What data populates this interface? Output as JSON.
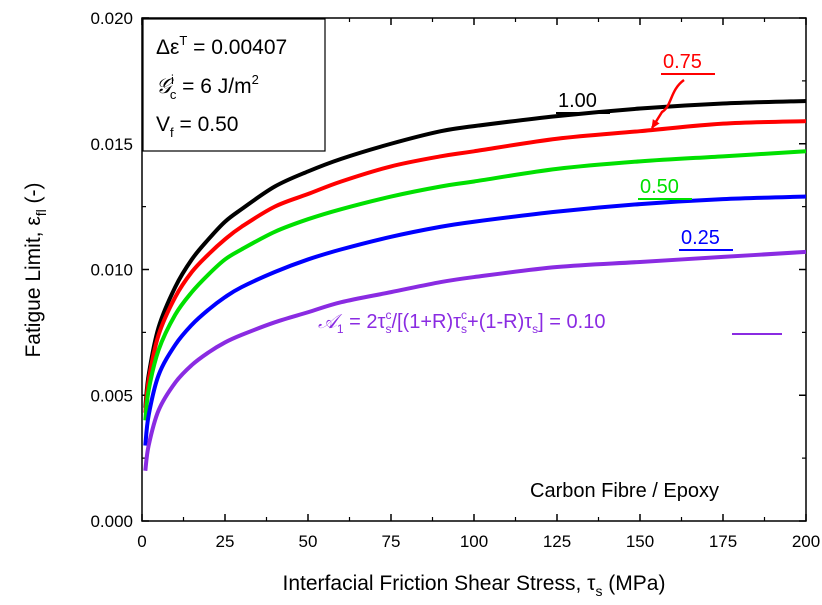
{
  "chart_data": {
    "type": "line",
    "title": "",
    "xlabel": {
      "main": "Interfacial Friction Shear Stress, ",
      "symbol": "τ",
      "sub": "s",
      "unit": " (MPa)"
    },
    "ylabel": {
      "main": "Fatigue Limit, ",
      "symbol": "ε",
      "sub": "fl",
      "unit": " (-)"
    },
    "xlim": [
      0,
      200
    ],
    "ylim": [
      0,
      0.02
    ],
    "x_ticks": [
      0,
      25,
      50,
      75,
      100,
      125,
      150,
      175,
      200
    ],
    "y_ticks": [
      0.0,
      0.005,
      0.01,
      0.015,
      0.02
    ],
    "y_tick_labels": [
      "0.000",
      "0.005",
      "0.010",
      "0.015",
      "0.020"
    ],
    "grid": false,
    "info_box": {
      "line1_prefix": "Δε",
      "line1_sup": "T",
      "line1_value": " = 0.00407",
      "line2_symbol": "𝒢",
      "line2_sup": "i",
      "line2_sub": "c",
      "line2_value": " = 6 J/m",
      "line2_unit_sup": "2",
      "line3_prefix": "V",
      "line3_sub": "f",
      "line3_value": " = 0.50"
    },
    "annotation": "Carbon Fibre / Epoxy",
    "a1_formula": {
      "symbol": "𝒜",
      "symbol_sub": "1",
      "part1": " = 2τ",
      "sub1": "s",
      "sup1": "c",
      "part2": "/[(1+R)τ",
      "sub2": "s",
      "sup2": "c",
      "part3": "+(1-R)τ",
      "sub3": "s",
      "part4": "] = "
    },
    "series": [
      {
        "name": "1.00",
        "color": "#000000",
        "x": [
          1,
          2,
          5,
          10,
          15,
          20,
          25,
          30,
          40,
          50,
          60,
          75,
          90,
          100,
          125,
          150,
          175,
          200
        ],
        "y": [
          0.0045,
          0.0058,
          0.0077,
          0.0093,
          0.0104,
          0.0112,
          0.0119,
          0.0124,
          0.0133,
          0.0139,
          0.0144,
          0.015,
          0.0155,
          0.0157,
          0.0161,
          0.0164,
          0.0166,
          0.0167
        ]
      },
      {
        "name": "0.75",
        "color": "#ff0000",
        "x": [
          1,
          2,
          5,
          10,
          15,
          20,
          25,
          30,
          40,
          50,
          60,
          75,
          90,
          100,
          125,
          150,
          175,
          200
        ],
        "y": [
          0.0043,
          0.0056,
          0.0074,
          0.0089,
          0.0099,
          0.0106,
          0.0112,
          0.0117,
          0.0125,
          0.013,
          0.0135,
          0.0141,
          0.0145,
          0.0147,
          0.0152,
          0.0155,
          0.0158,
          0.0159
        ]
      },
      {
        "name": "0.50",
        "color": "#00e000",
        "x": [
          1,
          2,
          5,
          10,
          15,
          20,
          25,
          30,
          40,
          50,
          60,
          75,
          90,
          100,
          125,
          150,
          175,
          200
        ],
        "y": [
          0.004,
          0.0052,
          0.0068,
          0.0082,
          0.0091,
          0.0098,
          0.0104,
          0.0108,
          0.0115,
          0.012,
          0.0124,
          0.0129,
          0.0133,
          0.0135,
          0.014,
          0.0143,
          0.0145,
          0.0147
        ]
      },
      {
        "name": "0.25",
        "color": "#0000ff",
        "x": [
          1,
          2,
          5,
          10,
          15,
          20,
          25,
          30,
          40,
          50,
          60,
          75,
          90,
          100,
          125,
          150,
          175,
          200
        ],
        "y": [
          0.003,
          0.0042,
          0.0058,
          0.007,
          0.0078,
          0.0084,
          0.0089,
          0.0093,
          0.0099,
          0.0104,
          0.0108,
          0.0113,
          0.0117,
          0.0119,
          0.0123,
          0.0126,
          0.0128,
          0.0129
        ]
      },
      {
        "name": "0.10",
        "color": "#8a2be2",
        "x": [
          1,
          2,
          5,
          10,
          15,
          20,
          25,
          30,
          40,
          50,
          60,
          75,
          90,
          100,
          125,
          150,
          175,
          200
        ],
        "y": [
          0.002,
          0.003,
          0.0044,
          0.0055,
          0.0062,
          0.0067,
          0.0071,
          0.0074,
          0.0079,
          0.0083,
          0.0087,
          0.0091,
          0.0095,
          0.0097,
          0.0101,
          0.0103,
          0.0105,
          0.0107
        ]
      }
    ]
  }
}
